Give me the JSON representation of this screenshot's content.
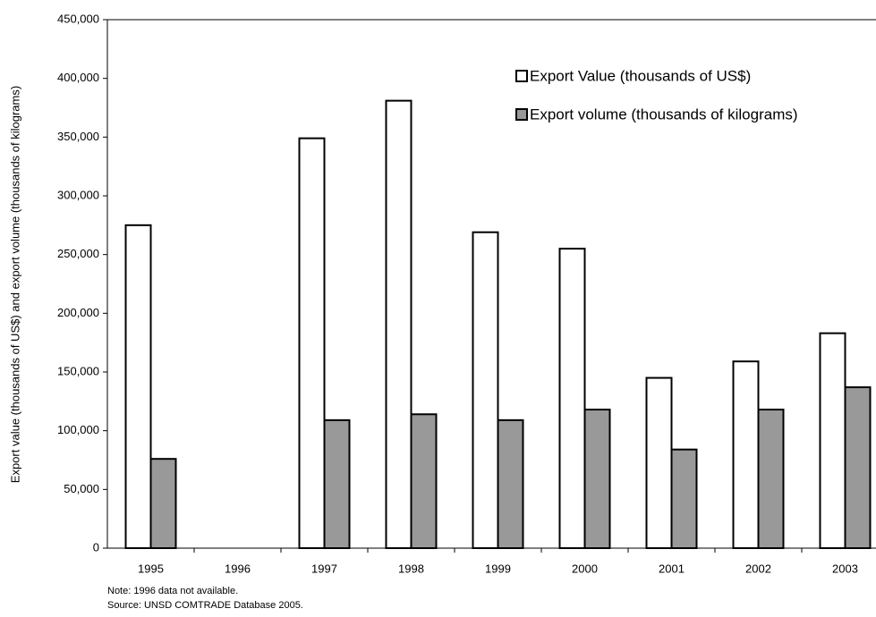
{
  "chart_data": {
    "type": "bar",
    "ylabel": "Export value (thousands of US$) and export volume (thousands of kilograms)",
    "categories": [
      "1995",
      "1996",
      "1997",
      "1998",
      "1999",
      "2000",
      "2001",
      "2002",
      "2003"
    ],
    "series": [
      {
        "name": "Export Value (thousands of US$)",
        "color": "#ffffff",
        "values": [
          275000,
          null,
          349000,
          381000,
          269000,
          255000,
          145000,
          159000,
          183000
        ]
      },
      {
        "name": "Export volume (thousands of kilograms)",
        "color": "#999999",
        "values": [
          76000,
          null,
          109000,
          114000,
          109000,
          118000,
          84000,
          118000,
          137000
        ]
      }
    ],
    "ylim": [
      0,
      450000
    ],
    "yticks": [
      0,
      {
        "value": 50000,
        "label": "50,000"
      },
      {
        "value": 100000,
        "label": "100,000"
      },
      {
        "value": 150000,
        "label": "150,000"
      },
      {
        "value": 200000,
        "label": "200,000"
      },
      {
        "value": 250000,
        "label": "250,000"
      },
      {
        "value": 300000,
        "label": "300,000"
      },
      {
        "value": 350000,
        "label": "350,000"
      },
      {
        "value": 400000,
        "label": "400,000"
      },
      {
        "value": 450000,
        "label": "450,000"
      }
    ],
    "legend": "upper right",
    "notes": [
      "Note: 1996 data not available.",
      "Source: UNSD COMTRADE Database 2005."
    ]
  }
}
